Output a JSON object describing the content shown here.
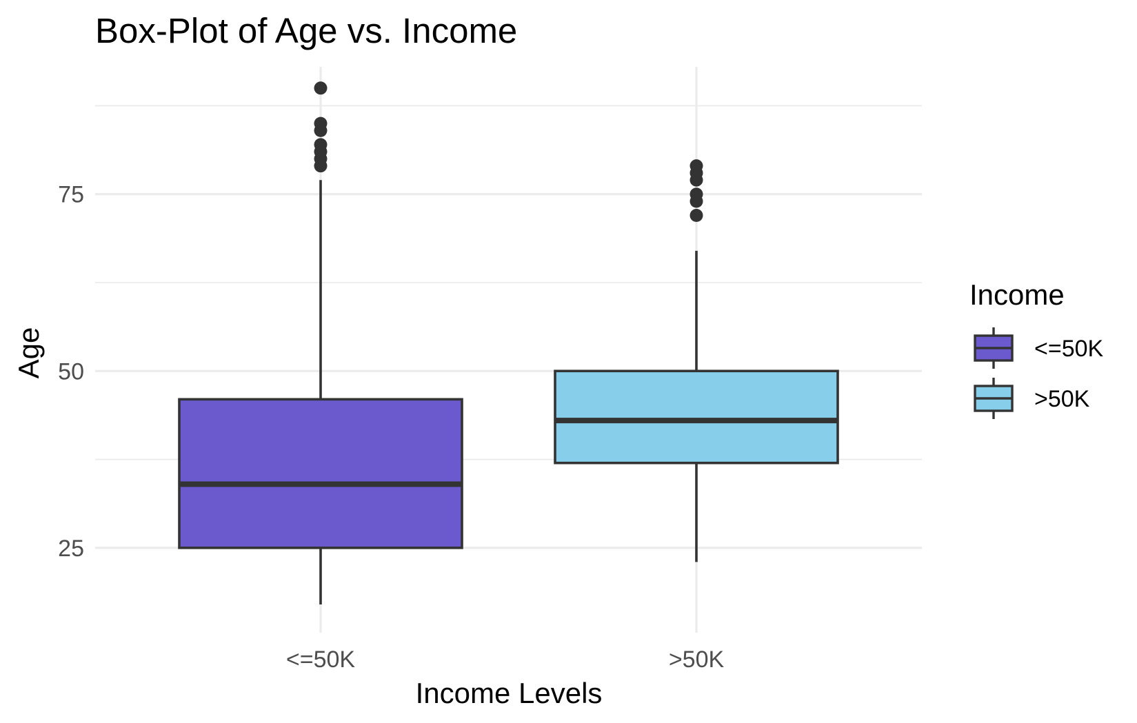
{
  "chart_data": {
    "type": "boxplot",
    "title": "Box-Plot of Age vs. Income",
    "xlabel": "Income Levels",
    "ylabel": "Age",
    "categories": [
      "<=50K",
      ">50K"
    ],
    "ylim": [
      13,
      93
    ],
    "yticks": [
      25,
      50,
      75
    ],
    "grid": true,
    "legend": {
      "title": "Income",
      "position": "right",
      "entries": [
        "<=50K",
        ">50K"
      ]
    },
    "series": [
      {
        "category": "<=50K",
        "color": "#6a5acd",
        "whisker_low": 17,
        "q1": 25,
        "median": 34,
        "q3": 46,
        "whisker_high": 77,
        "outliers": [
          79,
          80,
          81,
          82,
          84,
          85,
          90
        ]
      },
      {
        "category": ">50K",
        "color": "#87ceeb",
        "whisker_low": 23,
        "q1": 37,
        "median": 43,
        "q3": 50,
        "whisker_high": 67,
        "outliers": [
          72,
          74,
          75,
          77,
          78,
          79
        ]
      }
    ]
  }
}
